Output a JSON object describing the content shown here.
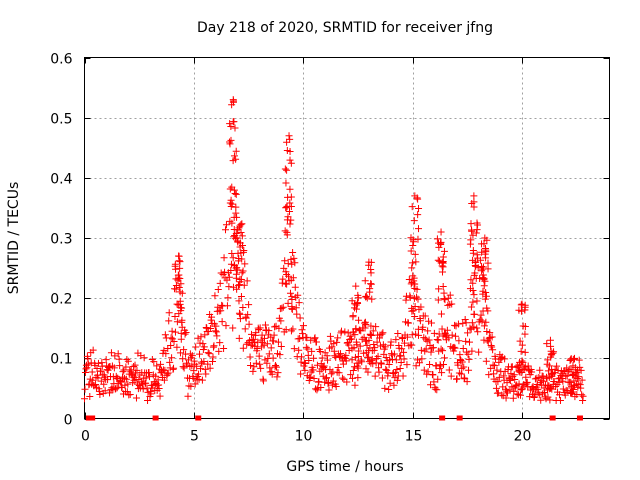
{
  "chart_data": {
    "type": "scatter",
    "title": "Day 218 of 2020, SRMTID for receiver jfng",
    "xlabel": "GPS time / hours",
    "ylabel": "SRMTID / TECUs",
    "xlim": [
      0,
      24
    ],
    "ylim": [
      0,
      0.6
    ],
    "grid": true,
    "legend": "none",
    "marker_color": "#ff0000",
    "x_ticks": [
      {
        "value": 0,
        "label": "0"
      },
      {
        "value": 5,
        "label": "5"
      },
      {
        "value": 10,
        "label": "10"
      },
      {
        "value": 15,
        "label": "15"
      },
      {
        "value": 20,
        "label": "20"
      }
    ],
    "y_ticks": [
      {
        "value": 0,
        "label": "0"
      },
      {
        "value": 0.1,
        "label": "0.1"
      },
      {
        "value": 0.2,
        "label": "0.2"
      },
      {
        "value": 0.3,
        "label": "0.3"
      },
      {
        "value": 0.4,
        "label": "0.4"
      },
      {
        "value": 0.5,
        "label": "0.5"
      },
      {
        "value": 0.6,
        "label": "0.6"
      }
    ],
    "baseline_markers_x": [
      0.2,
      0.35,
      3.25,
      5.2,
      16.35,
      17.15,
      21.4,
      22.65
    ],
    "profile": [
      [
        0.0,
        0.07
      ],
      [
        0.5,
        0.08
      ],
      [
        1.0,
        0.07
      ],
      [
        1.5,
        0.07
      ],
      [
        2.0,
        0.07
      ],
      [
        2.5,
        0.07
      ],
      [
        3.0,
        0.06
      ],
      [
        3.3,
        0.07
      ],
      [
        3.6,
        0.09
      ],
      [
        4.0,
        0.14
      ],
      [
        4.4,
        0.19
      ],
      [
        4.7,
        0.07
      ],
      [
        5.0,
        0.08
      ],
      [
        5.5,
        0.11
      ],
      [
        6.0,
        0.15
      ],
      [
        6.5,
        0.23
      ],
      [
        7.0,
        0.27
      ],
      [
        7.3,
        0.21
      ],
      [
        7.6,
        0.12
      ],
      [
        8.0,
        0.11
      ],
      [
        8.5,
        0.1
      ],
      [
        9.0,
        0.13
      ],
      [
        9.3,
        0.3
      ],
      [
        9.6,
        0.18
      ],
      [
        10.0,
        0.11
      ],
      [
        10.5,
        0.09
      ],
      [
        11.0,
        0.09
      ],
      [
        11.5,
        0.1
      ],
      [
        12.0,
        0.1
      ],
      [
        12.5,
        0.11
      ],
      [
        13.0,
        0.11
      ],
      [
        13.5,
        0.1
      ],
      [
        14.0,
        0.09
      ],
      [
        14.5,
        0.1
      ],
      [
        15.0,
        0.2
      ],
      [
        15.4,
        0.12
      ],
      [
        15.8,
        0.11
      ],
      [
        16.2,
        0.1
      ],
      [
        16.5,
        0.16
      ],
      [
        17.0,
        0.11
      ],
      [
        17.5,
        0.12
      ],
      [
        17.8,
        0.2
      ],
      [
        18.2,
        0.2
      ],
      [
        18.6,
        0.1
      ],
      [
        19.0,
        0.07
      ],
      [
        19.5,
        0.06
      ],
      [
        20.0,
        0.07
      ],
      [
        20.5,
        0.06
      ],
      [
        21.0,
        0.05
      ],
      [
        21.5,
        0.06
      ],
      [
        22.0,
        0.06
      ],
      [
        22.5,
        0.07
      ],
      [
        22.8,
        0.05
      ]
    ],
    "peaks": [
      [
        4.3,
        0.27
      ],
      [
        6.8,
        0.53
      ],
      [
        7.1,
        0.32
      ],
      [
        9.35,
        0.47
      ],
      [
        12.4,
        0.22
      ],
      [
        13.0,
        0.26
      ],
      [
        15.1,
        0.37
      ],
      [
        16.3,
        0.31
      ],
      [
        17.8,
        0.37
      ],
      [
        18.3,
        0.3
      ],
      [
        20.0,
        0.19
      ],
      [
        21.3,
        0.13
      ],
      [
        22.4,
        0.1
      ]
    ]
  }
}
